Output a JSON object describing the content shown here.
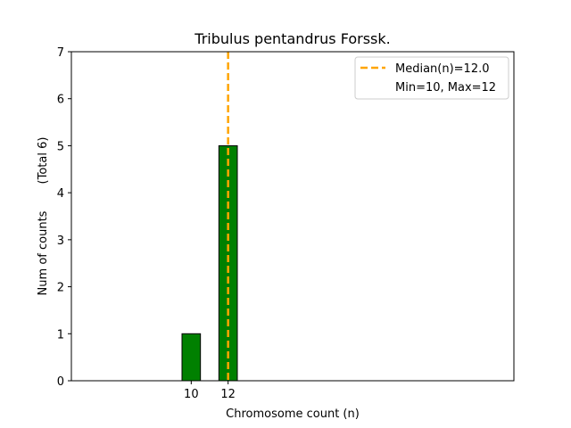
{
  "chart_data": {
    "type": "bar",
    "title": "Tribulus pentandrus Forssk.",
    "xlabel": "Chromosome count (n)",
    "ylabel": "Num of counts",
    "ylabel_extra": "(Total 6)",
    "x": [
      10,
      12
    ],
    "values": [
      1,
      5
    ],
    "bar_width": 1,
    "xlim": [
      3.5,
      27.5
    ],
    "ylim": [
      0,
      7
    ],
    "yticks": [
      0,
      1,
      2,
      3,
      4,
      5,
      6,
      7
    ],
    "xticks": [
      10,
      12
    ],
    "baseline_line_xrange": [
      3.5,
      17
    ],
    "median_line": {
      "x": 12.0,
      "label": "Median(n)=12.0",
      "color": "#ffa500"
    },
    "legend_extra": "Min=10, Max=12",
    "legend_position": "top-right",
    "bar_color": "#008000",
    "bar_edge_color": "#000000",
    "grid": false
  }
}
